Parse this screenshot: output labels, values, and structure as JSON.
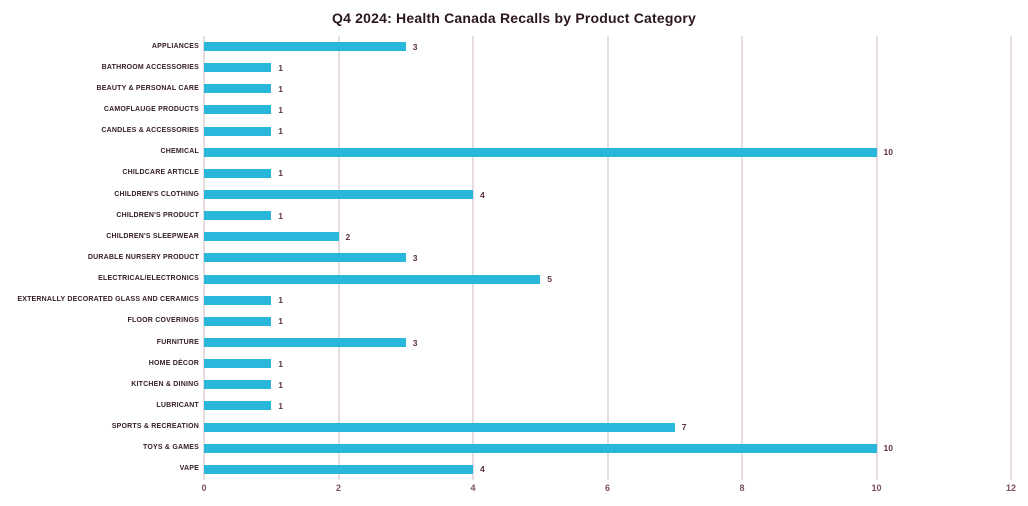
{
  "chart_data": {
    "type": "bar",
    "orientation": "horizontal",
    "title": "Q4 2024: Health Canada Recalls by Product Category",
    "categories": [
      "APPLIANCES",
      "BATHROOM ACCESSORIES",
      "BEAUTY & PERSONAL CARE",
      "CAMOFLAUGE PRODUCTS",
      "CANDLES & ACCESSORIES",
      "CHEMICAL",
      "CHILDCARE ARTICLE",
      "CHILDREN'S CLOTHING",
      "CHILDREN'S PRODUCT",
      "CHILDREN'S SLEEPWEAR",
      "DURABLE NURSERY PRODUCT",
      "ELECTRICAL/ELECTRONICS",
      "EXTERNALLY DECORATED GLASS AND CERAMICS",
      "FLOOR COVERINGS",
      "FURNITURE",
      "HOME DÉCOR",
      "KITCHEN & DINING",
      "LUBRICANT",
      "SPORTS & RECREATION",
      "TOYS & GAMES",
      "VAPE"
    ],
    "values": [
      3,
      1,
      1,
      1,
      1,
      10,
      1,
      4,
      1,
      2,
      3,
      5,
      1,
      1,
      3,
      1,
      1,
      1,
      7,
      10,
      4
    ],
    "data_labels_shown": true,
    "xlabel": "",
    "ylabel": "",
    "xlim": [
      0,
      12
    ],
    "x_ticks": [
      0,
      2,
      4,
      6,
      8,
      10,
      12
    ],
    "grid": "vertical",
    "legend": "none",
    "colors": {
      "bar": "#29b8db",
      "gridline": "#e8dce0",
      "title_text": "#2a161d",
      "category_text": "#331c27",
      "value_text": "#5d3344",
      "tick_text": "#7b4f60",
      "background": "#ffffff"
    }
  }
}
